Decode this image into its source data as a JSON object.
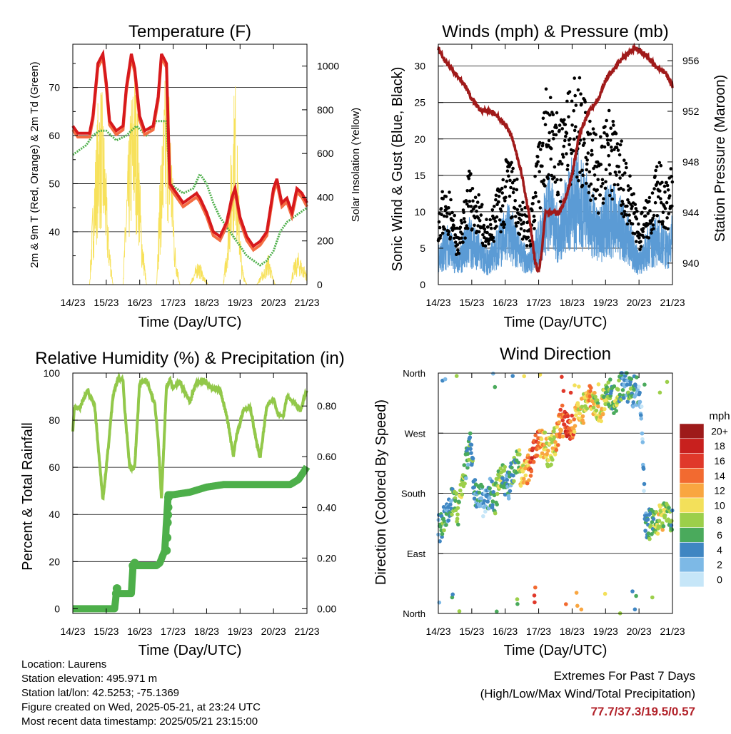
{
  "x_ticks": [
    "14/23",
    "15/23",
    "16/23",
    "17/23",
    "18/23",
    "19/23",
    "20/23",
    "21/23"
  ],
  "x_label": "Time (Day/UTC)",
  "colors": {
    "temp_red": "#d7191c",
    "temp_orange": "#f46d43",
    "dewpoint": "#4daf4a",
    "solar": "#f7e15a",
    "gust": "#000000",
    "wind": "#5b9bd5",
    "pressure": "#a01a1a",
    "rh": "#92c84a",
    "precip": "#4daf4a"
  },
  "temperature": {
    "title": "Temperature (F)",
    "ylabel_left": "2m & 9m T (Red, Orange) & 2m Td (Green)",
    "ylabel_right": "Solar Insolation (Yellow)",
    "left_ticks": [
      "40",
      "50",
      "60",
      "70"
    ],
    "right_ticks": [
      "0",
      "200",
      "400",
      "600",
      "800",
      "1000"
    ]
  },
  "winds": {
    "title": "Winds (mph) & Pressure (mb)",
    "ylabel_left": "Sonic Wind & Gust (Blue, Black)",
    "ylabel_right": "Station Pressure (Maroon)",
    "left_ticks": [
      "0",
      "5",
      "10",
      "15",
      "20",
      "25",
      "30"
    ],
    "right_ticks": [
      "940",
      "944",
      "948",
      "952",
      "956"
    ]
  },
  "humidity": {
    "title": "Relative Humidity (%) & Precipitation (in)",
    "ylabel_left": "Percent & Total Rainfall",
    "left_ticks": [
      "0",
      "20",
      "40",
      "60",
      "80",
      "100"
    ],
    "right_ticks": [
      "0.00",
      "0.20",
      "0.40",
      "0.60",
      "0.80"
    ]
  },
  "direction": {
    "title": "Wind Direction",
    "ylabel_left": "Direction (Colored By Speed)",
    "left_ticks": [
      "North",
      "East",
      "South",
      "West",
      "North"
    ],
    "legend_title": "mph",
    "legend_labels": [
      "20+",
      "18",
      "16",
      "14",
      "12",
      "10",
      "8",
      "6",
      "4",
      "2",
      "0"
    ],
    "legend_colors": [
      "#9e1a1a",
      "#c8201e",
      "#e0382a",
      "#f26a30",
      "#f9a640",
      "#f3e05a",
      "#9ccf4a",
      "#4aaa5c",
      "#3f86c2",
      "#7db9e6",
      "#c6e6f8"
    ]
  },
  "info": {
    "location": "Location: Laurens",
    "elevation": "Station elevation: 495.971 m",
    "latlon": "Station lat/lon: 42.5253; -75.1369",
    "created": "Figure created on Wed, 2025-05-21, at 23:24 UTC",
    "recent": "Most recent data timestamp: 2025/05/21 23:15:00"
  },
  "extremes": {
    "line1": "Extremes For Past 7 Days",
    "line2": "(High/Low/Max Wind/Total Precipitation)",
    "values": "77.7/37.3/19.5/0.57"
  },
  "chart_data": [
    {
      "type": "line",
      "title": "Temperature (F)",
      "xlabel": "Time (Day/UTC)",
      "ylabel": "2m & 9m T (Red, Orange) & 2m Td (Green)",
      "y2label": "Solar Insolation (Yellow)",
      "xlim": [
        0,
        7
      ],
      "ylim": [
        29,
        79
      ],
      "y2lim": [
        0,
        1100
      ],
      "series": [
        {
          "name": "2m T",
          "axis": "left",
          "x": [
            0,
            0.15,
            0.35,
            0.5,
            0.6,
            0.75,
            0.9,
            1.0,
            1.1,
            1.3,
            1.5,
            1.6,
            1.75,
            1.85,
            2.0,
            2.15,
            2.4,
            2.55,
            2.65,
            2.8,
            2.9,
            3.0,
            3.1,
            3.3,
            3.5,
            3.7,
            3.8,
            4.0,
            4.2,
            4.4,
            4.6,
            4.75,
            4.85,
            5.0,
            5.2,
            5.4,
            5.6,
            5.8,
            6.0,
            6.1,
            6.25,
            6.4,
            6.55,
            6.7,
            6.85,
            7.0
          ],
          "values": [
            62,
            60.5,
            60.5,
            60.5,
            64,
            75,
            77,
            71,
            63,
            61,
            62,
            70,
            77,
            74,
            64,
            61,
            62,
            68,
            77,
            75,
            50,
            49,
            48,
            46,
            47,
            48,
            47,
            44,
            40,
            39,
            42,
            47,
            49,
            43,
            39,
            37,
            38,
            40,
            49,
            51,
            46,
            47,
            44,
            49,
            48,
            46
          ]
        },
        {
          "name": "2m Td",
          "axis": "left",
          "x": [
            0,
            0.2,
            0.4,
            0.6,
            0.8,
            1.0,
            1.3,
            1.6,
            1.9,
            2.2,
            2.5,
            2.8,
            2.9,
            3.1,
            3.3,
            3.6,
            3.8,
            4.0,
            4.2,
            4.4,
            4.6,
            4.8,
            5.0,
            5.2,
            5.4,
            5.6,
            5.8,
            6.0,
            6.2,
            6.4,
            6.6,
            6.8,
            7.0
          ],
          "values": [
            56,
            57,
            58,
            60,
            61,
            61,
            59,
            60,
            62,
            60,
            63,
            63,
            50,
            49,
            48,
            49,
            52,
            50,
            46,
            43,
            41,
            39,
            37,
            35,
            34,
            33,
            34,
            36,
            40,
            42,
            43,
            44,
            45
          ]
        },
        {
          "name": "Solar",
          "axis": "right",
          "x": [
            0,
            0.5,
            0.6,
            0.75,
            0.85,
            0.95,
            1.05,
            1.2,
            1.5,
            1.6,
            1.75,
            1.85,
            1.95,
            2.05,
            2.2,
            2.5,
            2.6,
            2.75,
            2.85,
            2.95,
            3.05,
            3.2,
            3.5,
            3.6,
            3.75,
            3.85,
            3.95,
            4.05,
            4.2,
            4.5,
            4.6,
            4.75,
            4.85,
            4.95,
            5.05,
            5.2,
            5.5,
            5.6,
            5.75,
            5.85,
            5.95,
            6.05,
            6.2,
            6.5,
            6.6,
            6.75,
            6.85,
            6.95,
            7.0
          ],
          "values": [
            0,
            0,
            400,
            850,
            950,
            700,
            300,
            0,
            0,
            450,
            900,
            1000,
            800,
            300,
            0,
            0,
            500,
            950,
            1050,
            700,
            200,
            0,
            0,
            50,
            120,
            80,
            30,
            0,
            0,
            0,
            200,
            700,
            1000,
            500,
            100,
            0,
            0,
            40,
            90,
            150,
            60,
            0,
            0,
            0,
            100,
            150,
            110,
            80,
            50
          ]
        }
      ]
    },
    {
      "type": "line",
      "title": "Winds (mph) & Pressure (mb)",
      "xlabel": "Time (Day/UTC)",
      "ylabel": "Sonic Wind & Gust (Blue, Black)",
      "y2label": "Station Pressure (Maroon)",
      "xlim": [
        0,
        7
      ],
      "ylim": [
        0,
        33
      ],
      "y2lim": [
        938.3,
        957.3
      ],
      "series": [
        {
          "name": "Sonic Wind",
          "axis": "left",
          "x": [
            0,
            0.3,
            0.6,
            0.9,
            1.2,
            1.5,
            1.8,
            2.1,
            2.4,
            2.7,
            3.0,
            3.3,
            3.6,
            3.9,
            4.2,
            4.5,
            4.8,
            5.1,
            5.4,
            5.7,
            6.0,
            6.3,
            6.6,
            6.9,
            7.0
          ],
          "values": [
            5,
            7,
            4,
            8,
            6,
            4,
            7,
            10,
            6,
            4,
            8,
            13,
            9,
            14,
            16,
            12,
            9,
            12,
            11,
            8,
            4,
            7,
            8,
            6,
            9
          ]
        },
        {
          "name": "Gust",
          "axis": "left",
          "x": [
            0,
            0.3,
            0.6,
            0.9,
            1.2,
            1.5,
            1.8,
            2.1,
            2.4,
            2.7,
            3.0,
            3.3,
            3.6,
            3.9,
            4.2,
            4.5,
            4.8,
            5.1,
            5.4,
            5.7,
            6.0,
            6.3,
            6.6,
            6.9,
            7.0
          ],
          "values": [
            11,
            12,
            6,
            14,
            11,
            7,
            12,
            16,
            12,
            8,
            17,
            27,
            19,
            24,
            26,
            20,
            17,
            21,
            19,
            14,
            8,
            11,
            15,
            13,
            16
          ]
        },
        {
          "name": "Station Pressure",
          "axis": "right",
          "x": [
            0,
            0.2,
            0.5,
            0.8,
            1.0,
            1.3,
            1.6,
            1.8,
            2.0,
            2.2,
            2.5,
            2.7,
            2.8,
            2.9,
            3.0,
            3.1,
            3.2,
            3.4,
            3.6,
            3.8,
            4.0,
            4.2,
            4.5,
            4.8,
            5.0,
            5.3,
            5.6,
            5.9,
            6.2,
            6.5,
            6.8,
            7.0
          ],
          "values": [
            957,
            956,
            955,
            954,
            953,
            952,
            952,
            951.5,
            951,
            950,
            947,
            944,
            942,
            940,
            939.3,
            941,
            944,
            944,
            944,
            945,
            947,
            950,
            952,
            953,
            954.5,
            955.5,
            956.5,
            957,
            956.5,
            955.5,
            955,
            954
          ]
        }
      ]
    },
    {
      "type": "line",
      "title": "Relative Humidity (%) & Precipitation (in)",
      "xlabel": "Time (Day/UTC)",
      "ylabel": "Percent & Total Rainfall",
      "xlim": [
        0,
        7
      ],
      "ylim": [
        -2,
        100
      ],
      "y2lim": [
        -0.0186,
        0.93
      ],
      "series": [
        {
          "name": "Relative Humidity",
          "axis": "left",
          "x": [
            0,
            0.05,
            0.2,
            0.45,
            0.5,
            0.65,
            0.75,
            0.9,
            1.05,
            1.2,
            1.35,
            1.5,
            1.55,
            1.7,
            1.85,
            2.0,
            2.2,
            2.45,
            2.55,
            2.65,
            2.8,
            2.9,
            3.0,
            3.2,
            3.5,
            3.7,
            3.9,
            4.1,
            4.4,
            4.6,
            4.8,
            4.9,
            5.1,
            5.3,
            5.5,
            5.6,
            5.8,
            6.0,
            6.15,
            6.3,
            6.4,
            6.6,
            6.8,
            7.0
          ],
          "values": [
            76,
            86,
            85,
            93,
            90,
            87,
            70,
            46,
            67,
            90,
            98,
            97,
            85,
            60,
            60,
            96,
            97,
            87,
            72,
            47,
            94,
            97,
            94,
            96,
            88,
            96,
            97,
            94,
            93,
            82,
            65,
            74,
            84,
            86,
            70,
            64,
            86,
            89,
            82,
            82,
            90,
            88,
            84,
            93
          ]
        },
        {
          "name": "Total Rainfall",
          "axis": "right",
          "x": [
            0,
            0.7,
            1.0,
            1.25,
            1.3,
            1.45,
            1.75,
            1.8,
            2.5,
            2.6,
            2.75,
            2.85,
            3.0,
            3.5,
            4.0,
            4.5,
            5.0,
            6.5,
            6.75,
            6.85,
            7.0
          ],
          "values": [
            0,
            0,
            0,
            0,
            0.06,
            0.06,
            0.06,
            0.17,
            0.17,
            0.18,
            0.23,
            0.45,
            0.45,
            0.46,
            0.48,
            0.49,
            0.49,
            0.49,
            0.51,
            0.53,
            0.56
          ]
        }
      ]
    },
    {
      "type": "scatter",
      "title": "Wind Direction",
      "xlabel": "Time (Day/UTC)",
      "ylabel": "Direction (Colored By Speed)",
      "xlim": [
        0,
        7
      ],
      "ylim": [
        0,
        360
      ],
      "color_scale": "mph",
      "series": [
        {
          "name": "direction",
          "x": [
            0.05,
            0.15,
            0.3,
            0.45,
            0.6,
            0.75,
            0.85,
            0.95,
            1.1,
            1.25,
            1.4,
            1.55,
            1.7,
            1.85,
            1.95,
            2.1,
            2.25,
            2.4,
            2.5,
            2.65,
            2.8,
            2.95,
            3.1,
            3.25,
            3.4,
            3.55,
            3.7,
            3.85,
            4.0,
            4.2,
            4.4,
            4.55,
            4.7,
            4.85,
            5.0,
            5.15,
            5.3,
            5.45,
            5.6,
            5.75,
            5.9,
            6.05,
            6.2,
            6.35,
            6.5,
            6.65,
            6.8,
            6.95
          ],
          "values": [
            130,
            140,
            160,
            170,
            150,
            200,
            230,
            250,
            180,
            175,
            160,
            185,
            170,
            210,
            200,
            190,
            220,
            230,
            200,
            215,
            230,
            250,
            260,
            240,
            245,
            270,
            290,
            275,
            285,
            300,
            310,
            320,
            315,
            305,
            320,
            330,
            315,
            340,
            345,
            330,
            335,
            320,
            130,
            135,
            140,
            145,
            150,
            135
          ],
          "speeds": [
            4,
            6,
            4,
            6,
            8,
            8,
            4,
            6,
            4,
            4,
            2,
            4,
            6,
            8,
            6,
            4,
            6,
            8,
            10,
            12,
            16,
            14,
            12,
            10,
            8,
            12,
            14,
            16,
            14,
            10,
            10,
            12,
            8,
            10,
            8,
            6,
            8,
            6,
            4,
            6,
            4,
            2,
            4,
            6,
            8,
            10,
            8,
            6
          ]
        }
      ]
    }
  ]
}
